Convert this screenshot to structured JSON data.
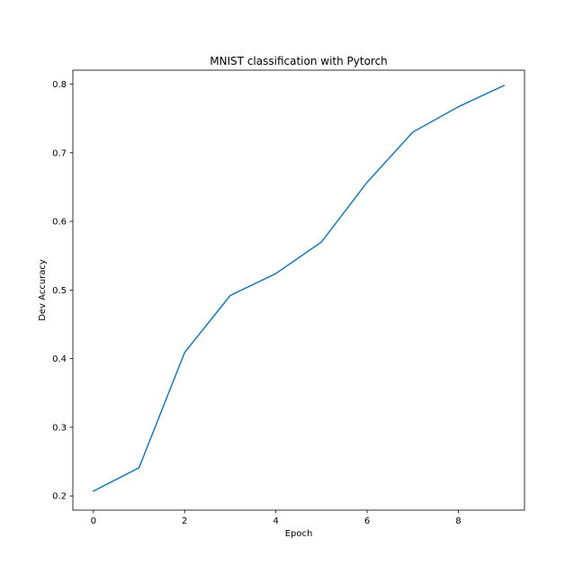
{
  "chart_data": {
    "type": "line",
    "title": "MNIST classification with Pytorch",
    "xlabel": "Epoch",
    "ylabel": "Dev Accuracy",
    "xlim": [
      -0.45,
      9.45
    ],
    "ylim": [
      0.1793,
      0.8203
    ],
    "xticks": [
      0,
      2,
      4,
      6,
      8
    ],
    "yticks": [
      0.2,
      0.3,
      0.4,
      0.5,
      0.6,
      0.7,
      0.8
    ],
    "xtick_labels": [
      "0",
      "2",
      "4",
      "6",
      "8"
    ],
    "ytick_labels": [
      "0.2",
      "0.3",
      "0.4",
      "0.5",
      "0.6",
      "0.7",
      "0.8"
    ],
    "grid": false,
    "series": [
      {
        "color": "#1f77b4",
        "x": [
          0,
          1,
          2,
          3,
          4,
          5,
          6,
          7,
          8,
          9
        ],
        "y": [
          0.207,
          0.241,
          0.409,
          0.492,
          0.524,
          0.57,
          0.657,
          0.73,
          0.767,
          0.798
        ]
      }
    ]
  }
}
